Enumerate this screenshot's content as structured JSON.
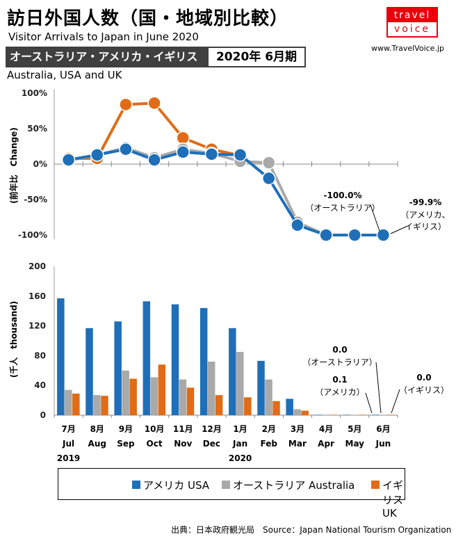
{
  "header": {
    "title": "訪日外国人数（国・地域別比較）",
    "subtitle": "Visitor Arrivals to Japan in June 2020",
    "band": "オーストラリア・アメリカ・イギリス",
    "period": "2020年 6月期",
    "region": "Australia, USA and UK",
    "logo_top": "travel",
    "logo_bottom": "voice",
    "site": "www.TravelVoice.jp"
  },
  "colors": {
    "usa": "#1f6fb8",
    "australia": "#a9a9a9",
    "uk": "#e06c17"
  },
  "chart_data": [
    {
      "type": "line",
      "ylabel": "(前年比　Change)",
      "ylim": [
        -100,
        100
      ],
      "yticks": [
        "100%",
        "50%",
        "0%",
        "-50%",
        "-100%"
      ],
      "categories": [
        "7月",
        "8月",
        "9月",
        "10月",
        "11月",
        "12月",
        "1月",
        "2月",
        "3月",
        "4月",
        "5月",
        "6月"
      ],
      "series": [
        {
          "name": "イギリス UK",
          "values": [
            8,
            8,
            84,
            86,
            37,
            21,
            12,
            null,
            null,
            null,
            null,
            null
          ]
        },
        {
          "name": "オーストラリア Australia",
          "values": [
            5,
            13,
            23,
            9,
            21,
            15,
            4,
            2,
            -82,
            -100,
            -100,
            -100
          ]
        },
        {
          "name": "アメリカ USA",
          "values": [
            6,
            13,
            21,
            6,
            17,
            14,
            13,
            -20,
            -86,
            -100,
            -100,
            -100
          ]
        }
      ],
      "annotations": [
        {
          "value": "-100.0%",
          "label": "（オーストラリア）"
        },
        {
          "value": "-99.9%",
          "label": "（アメリカ、",
          "label2": "イギリス）"
        }
      ]
    },
    {
      "type": "bar",
      "ylabel": "(千人　thousand)",
      "ylim": [
        0,
        200
      ],
      "yticks": [
        "200",
        "160",
        "120",
        "80",
        "40",
        "0"
      ],
      "months_jp": [
        "7月",
        "8月",
        "9月",
        "10月",
        "11月",
        "12月",
        "1月",
        "2月",
        "3月",
        "4月",
        "5月",
        "6月"
      ],
      "months_en": [
        "Jul",
        "Aug",
        "Sep",
        "Oct",
        "Nov",
        "Dec",
        "Jan",
        "Feb",
        "Mar",
        "Apr",
        "May",
        "Jun"
      ],
      "years": [
        "2019",
        "2020"
      ],
      "series": [
        {
          "name": "アメリカ USA",
          "values": [
            157,
            117,
            126,
            153,
            149,
            144,
            117,
            73,
            22,
            0.3,
            0.1,
            0.1
          ]
        },
        {
          "name": "オーストラリア Australia",
          "values": [
            34,
            27,
            60,
            51,
            48,
            72,
            85,
            48,
            8,
            0.1,
            0.0,
            0.0
          ]
        },
        {
          "name": "イギリス UK",
          "values": [
            29,
            26,
            49,
            68,
            37,
            27,
            24,
            19,
            6,
            0.2,
            0.0,
            0.0
          ]
        }
      ],
      "annotations": [
        {
          "value": "0.0",
          "label": "（オーストラリア）"
        },
        {
          "value": "0.1",
          "label": "（アメリカ）"
        },
        {
          "value": "0.0",
          "label": "（イギリス）"
        }
      ]
    }
  ],
  "legend": [
    {
      "label": "アメリカ USA",
      "color": "#1f6fb8"
    },
    {
      "label": "オーストラリア Australia",
      "color": "#a9a9a9"
    },
    {
      "label": "イギリス UK",
      "color": "#e06c17"
    }
  ],
  "source": "出典：日本政府観光局　Source：Japan  National Tourism  Organization"
}
